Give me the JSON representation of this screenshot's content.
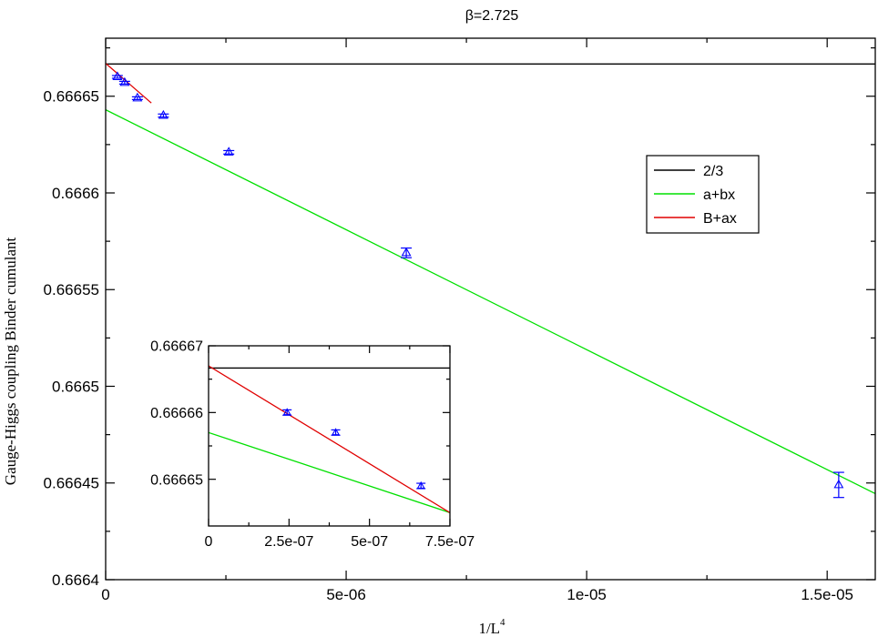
{
  "chart_data": [
    {
      "type": "line",
      "role": "main",
      "title": "β=2.725",
      "xlabel": "1/L",
      "xlabel_superscript": "4",
      "ylabel": "Gauge-Higgs coupling Binder cumulant",
      "xlim": [
        0,
        1.6e-05
      ],
      "ylim": [
        0.6664,
        0.66668
      ],
      "x_ticks": [
        0,
        5e-06,
        1e-05,
        1.5e-05
      ],
      "x_tick_labels": [
        "0",
        "5e-06",
        "1e-05",
        "1.5e-05"
      ],
      "y_ticks": [
        0.6664,
        0.66645,
        0.6665,
        0.66655,
        0.6666,
        0.66665
      ],
      "y_tick_labels": [
        "0.6664",
        "0.66645",
        "0.6665",
        "0.66655",
        "0.6666",
        "0.66665"
      ],
      "grid": false,
      "legend_position": "right",
      "legend": [
        {
          "label": "2/3",
          "color": "#000000"
        },
        {
          "label": "a+bx",
          "color": "#00e000"
        },
        {
          "label": "B+ax",
          "color": "#e00000"
        }
      ],
      "series": [
        {
          "name": "2/3",
          "kind": "constant",
          "color": "#000000",
          "y": 0.666666667
        },
        {
          "name": "a+bx",
          "kind": "line",
          "color": "#00e000",
          "x": [
            0,
            1.6e-05
          ],
          "y": [
            0.666643,
            0.6664445
          ]
        },
        {
          "name": "B+ax",
          "kind": "line",
          "color": "#e00000",
          "x": [
            0,
            9.5e-07
          ],
          "y": [
            0.666667,
            0.6666465
          ]
        },
        {
          "kind": "points",
          "color": "#0000ff",
          "marker": "triangle",
          "x": [
            2.44e-07,
            3.95e-07,
            6.6e-07,
            1.2e-06,
            2.56e-06,
            6.25e-06,
            1.524e-05
          ],
          "y": [
            0.66666,
            0.666657,
            0.666649,
            0.66664,
            0.666621,
            0.666569,
            0.666449
          ],
          "yerr": [
            7e-07,
            7e-07,
            7e-07,
            8e-07,
            9e-07,
            2.5e-06,
            6.5e-06
          ]
        }
      ]
    },
    {
      "type": "line",
      "role": "inset",
      "xlim": [
        0,
        7.5e-07
      ],
      "ylim": [
        0.666643,
        0.66667
      ],
      "x_ticks": [
        0,
        2.5e-07,
        5e-07,
        7.5e-07
      ],
      "x_tick_labels": [
        "0",
        "2.5e-07",
        "5e-07",
        "7.5e-07"
      ],
      "y_ticks": [
        0.66665,
        0.66666,
        0.66667
      ],
      "y_tick_labels": [
        "0.66665",
        "0.66666",
        "0.66667"
      ],
      "series": [
        {
          "name": "2/3",
          "kind": "constant",
          "color": "#000000",
          "y": 0.666666667
        },
        {
          "name": "a+bx",
          "kind": "line",
          "color": "#00e000",
          "x": [
            0,
            7.5e-07
          ],
          "y": [
            0.666657,
            0.666645
          ]
        },
        {
          "name": "B+ax",
          "kind": "line",
          "color": "#e00000",
          "x": [
            0,
            7.5e-07
          ],
          "y": [
            0.666667,
            0.666645
          ]
        },
        {
          "kind": "points",
          "color": "#0000ff",
          "marker": "triangle",
          "x": [
            2.44e-07,
            3.95e-07,
            6.6e-07
          ],
          "y": [
            0.66666,
            0.666657,
            0.666649
          ],
          "yerr": [
            4e-07,
            4e-07,
            4e-07
          ]
        }
      ]
    }
  ]
}
